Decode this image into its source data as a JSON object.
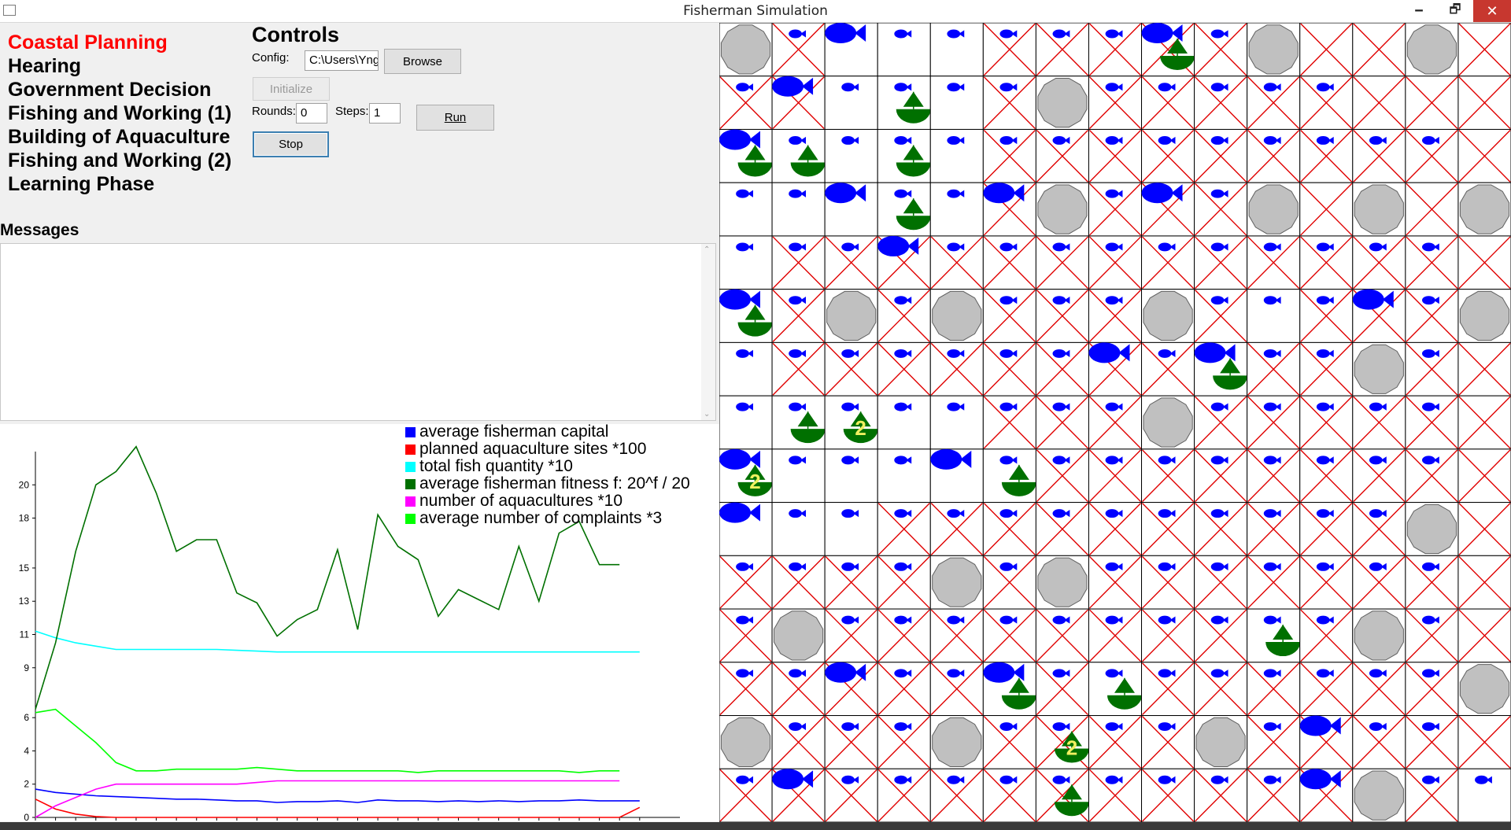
{
  "window": {
    "title": "Fisherman Simulation",
    "minimize": "🗕",
    "maximize": "🗗",
    "close": "✕"
  },
  "phases": [
    {
      "label": "Coastal Planning",
      "active": true
    },
    {
      "label": "Hearing",
      "active": false
    },
    {
      "label": "Government Decision",
      "active": false
    },
    {
      "label": "Fishing and Working (1)",
      "active": false
    },
    {
      "label": "Building of Aquaculture",
      "active": false
    },
    {
      "label": "Fishing and Working (2)",
      "active": false
    },
    {
      "label": "Learning Phase",
      "active": false
    }
  ],
  "controls": {
    "title": "Controls",
    "config_label": "Config:",
    "config_value": "C:\\Users\\Yng",
    "browse_label": "Browse",
    "initialize_label": "Initialize",
    "rounds_label": "Rounds:",
    "rounds_value": "0",
    "steps_label": "Steps:",
    "steps_value": "1",
    "run_label": "Run",
    "stop_label": "Stop"
  },
  "messages": {
    "title": "Messages",
    "scroll_up": "⌃",
    "scroll_down": "⌄"
  },
  "chart_data": {
    "type": "line",
    "x": [
      0,
      1,
      2,
      3,
      4,
      5,
      6,
      7,
      8,
      9,
      10,
      11,
      12,
      13,
      14,
      15,
      16,
      17,
      18,
      19,
      20,
      21,
      22,
      23,
      24,
      25,
      26,
      27,
      28,
      29,
      30
    ],
    "ylim": [
      0,
      22
    ],
    "xlim": [
      0,
      32
    ],
    "y_ticks": [
      0,
      2,
      4,
      6,
      9,
      11,
      13,
      15,
      18,
      20
    ],
    "x_ticks": [
      0,
      1,
      2,
      3,
      4,
      5,
      6,
      7,
      8,
      9,
      10,
      11,
      12,
      13,
      14,
      15,
      16,
      17,
      18,
      19,
      20,
      21,
      22,
      23,
      24,
      25,
      26,
      27,
      28,
      29,
      30
    ],
    "legend_position": "top-right",
    "series": [
      {
        "name": "average fisherman capital",
        "color": "#0000ff",
        "values": [
          1.7,
          1.5,
          1.4,
          1.3,
          1.25,
          1.2,
          1.15,
          1.1,
          1.1,
          1.05,
          1.0,
          1.0,
          0.9,
          0.95,
          0.95,
          1.0,
          0.9,
          1.05,
          1.0,
          1.0,
          0.95,
          1.0,
          0.95,
          1.0,
          0.95,
          1.0,
          1.0,
          1.05,
          1.0,
          1.0,
          1.0
        ]
      },
      {
        "name": "planned aquaculture sites *100",
        "color": "#ff0000",
        "values": [
          1.1,
          0.5,
          0.2,
          0.05,
          0,
          0,
          0,
          0,
          0,
          0,
          0,
          0,
          0,
          0,
          0,
          0,
          0,
          0,
          0,
          0,
          0,
          0,
          0,
          0,
          0,
          0,
          0,
          0,
          0,
          0,
          0.6
        ]
      },
      {
        "name": "total fish quantity *10",
        "color": "#00ffff",
        "values": [
          11.2,
          10.8,
          10.5,
          10.3,
          10.1,
          10.1,
          10.1,
          10.1,
          10.1,
          10.1,
          10.05,
          10.0,
          9.95,
          9.95,
          9.95,
          9.95,
          9.95,
          9.95,
          9.95,
          9.95,
          9.95,
          9.95,
          9.95,
          9.95,
          9.95,
          9.95,
          9.95,
          9.95,
          9.95,
          9.95,
          9.95
        ]
      },
      {
        "name": "average fisherman fitness f: 20^f / 20",
        "color": "#007000",
        "values": [
          6.5,
          10.5,
          16,
          20,
          20.8,
          22.3,
          19.5,
          16,
          16.7,
          16.7,
          13.5,
          12.9,
          10.9,
          11.9,
          12.5,
          16.1,
          11.3,
          18.2,
          16.3,
          15.5,
          12.1,
          13.7,
          13.1,
          12.5,
          16.3,
          13.0,
          17.1,
          17.8,
          15.2,
          15.2,
          null
        ]
      },
      {
        "name": "number of aquacultures *10",
        "color": "#ff00ff",
        "values": [
          0,
          0.7,
          1.2,
          1.7,
          2.0,
          2.0,
          2.0,
          2.0,
          2.0,
          2.0,
          2.0,
          2.1,
          2.2,
          2.2,
          2.2,
          2.2,
          2.2,
          2.2,
          2.2,
          2.2,
          2.2,
          2.2,
          2.2,
          2.2,
          2.2,
          2.2,
          2.2,
          2.2,
          2.2,
          2.2,
          null
        ]
      },
      {
        "name": "average number of complaints *3",
        "color": "#00ff00",
        "values": [
          6.3,
          6.5,
          5.5,
          4.5,
          3.3,
          2.8,
          2.8,
          2.9,
          2.9,
          2.9,
          2.9,
          3.0,
          2.9,
          2.8,
          2.8,
          2.8,
          2.8,
          2.8,
          2.8,
          2.7,
          2.8,
          2.8,
          2.8,
          2.8,
          2.8,
          2.8,
          2.8,
          2.7,
          2.8,
          2.8,
          null
        ]
      }
    ]
  },
  "grid": {
    "cols": 15,
    "rows": 15,
    "legend_hint": "c=cross, g=rock, f=small fish, F=big fish, b=boat, 2=boat with number 2, .=empty",
    "cells": [
      [
        "g",
        "cf",
        "F",
        "f",
        "f",
        "cf",
        "cf",
        "cf",
        "cFb",
        "cf",
        "g",
        "c",
        "c",
        "g",
        "c"
      ],
      [
        "cf",
        "cF",
        "f",
        "fb",
        "f",
        "cf",
        "g",
        "cf",
        "cf",
        "cf",
        "cf",
        "cf",
        "c",
        "c",
        "c"
      ],
      [
        "Fb",
        "fb",
        "f",
        "fb",
        "f",
        "cf",
        "cf",
        "cf",
        "cf",
        "cf",
        "cf",
        "cf",
        "cf",
        "cf",
        "c"
      ],
      [
        "f",
        "f",
        "F",
        "fb",
        "f",
        "cF",
        "g",
        "cf",
        "cF",
        "cf",
        "g",
        "c",
        "g",
        "c",
        "g"
      ],
      [
        "f",
        "cf",
        "cf",
        "cF",
        "cf",
        "cf",
        "cf",
        "cf",
        "cf",
        "cf",
        "cf",
        "cf",
        "cf",
        "cf",
        "c"
      ],
      [
        "Fb",
        "cf",
        "g",
        "cf",
        "g",
        "cf",
        "cf",
        "cf",
        "g",
        "cf",
        "f",
        "cf",
        "cF",
        "cf",
        "g"
      ],
      [
        "f",
        "cf",
        "cf",
        "cf",
        "cf",
        "cf",
        "cf",
        "cF",
        "cf",
        "Fb",
        "cf",
        "cf",
        "g",
        "cf",
        "c"
      ],
      [
        "f",
        "fb",
        "f2",
        "f",
        "f",
        "cf",
        "cf",
        "cf",
        "g",
        "cf",
        "cf",
        "cf",
        "cf",
        "cf",
        "c"
      ],
      [
        "F2",
        "f",
        "f",
        "f",
        "F",
        "fb",
        "cf",
        "cf",
        "cf",
        "cf",
        "cf",
        "cf",
        "cf",
        "cf",
        "c"
      ],
      [
        "F",
        "f",
        "f",
        "cf",
        "cf",
        "cf",
        "cf",
        "cf",
        "cf",
        "cf",
        "cf",
        "cf",
        "cf",
        "g",
        "c"
      ],
      [
        "cf",
        "cf",
        "cf",
        "cf",
        "g",
        "cf",
        "g",
        "cf",
        "cf",
        "cf",
        "cf",
        "cf",
        "cf",
        "cf",
        "c"
      ],
      [
        "cf",
        "g",
        "cf",
        "cf",
        "cf",
        "cf",
        "cf",
        "cf",
        "cf",
        "cf",
        "fb",
        "cf",
        "g",
        "cf",
        "c"
      ],
      [
        "cf",
        "cf",
        "cF",
        "cf",
        "cf",
        "Fb",
        "cf",
        "fb",
        "cf",
        "cf",
        "cf",
        "cf",
        "cf",
        "cf",
        "g"
      ],
      [
        "g",
        "cf",
        "cf",
        "cf",
        "g",
        "cf",
        "cf2",
        "cf",
        "cf",
        "g",
        "cf",
        "cF",
        "cf",
        "cf",
        "c"
      ],
      [
        "cf",
        "cF",
        "cf",
        "cf",
        "cf",
        "cf",
        "cfb",
        "cf",
        "cf",
        "cf",
        "cf",
        "cF",
        "g",
        "cf",
        "f"
      ]
    ]
  }
}
